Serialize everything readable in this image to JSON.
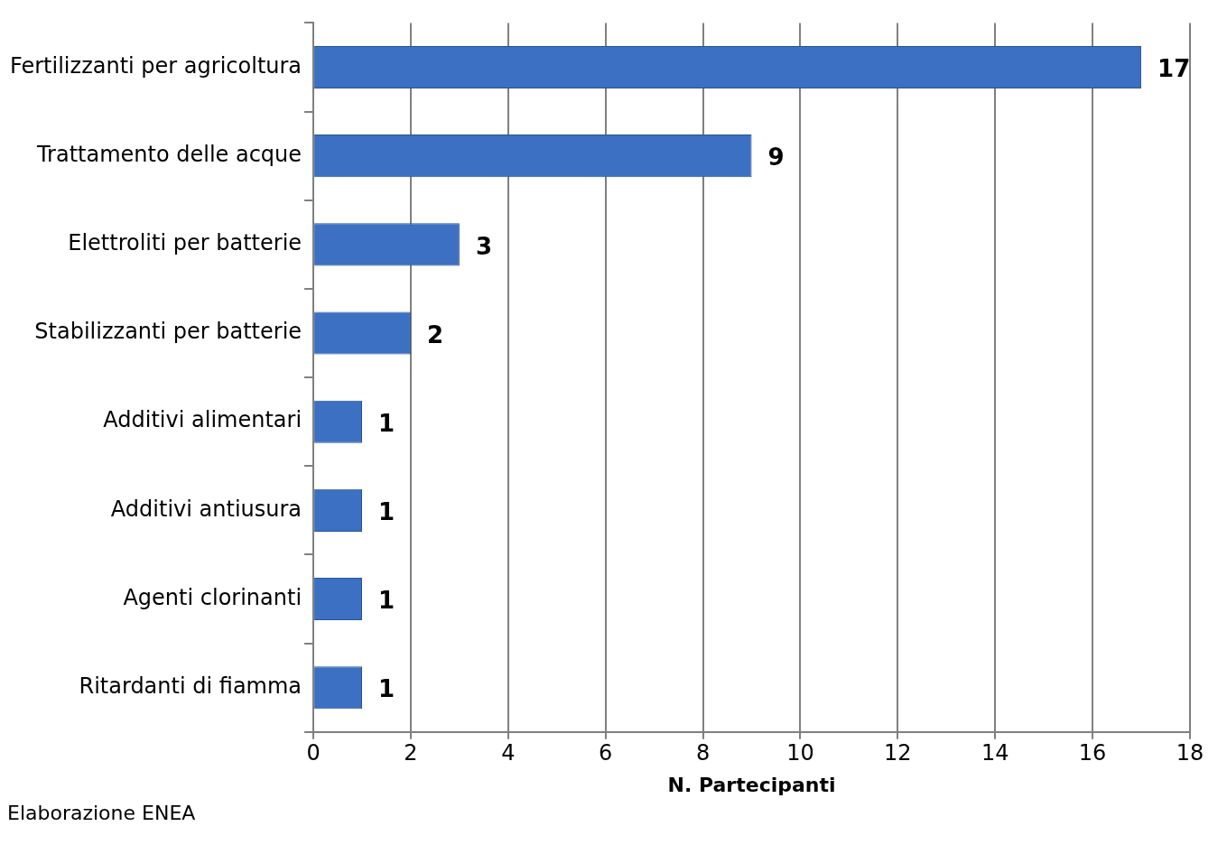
{
  "chart_data": {
    "type": "bar",
    "orientation": "horizontal",
    "xlabel": "N. Partecipanti",
    "categories": [
      "Fertilizzanti per agricoltura",
      "Trattamento delle acque",
      "Elettroliti per batterie",
      "Stabilizzanti per batterie",
      "Additivi alimentari",
      "Additivi antiusura",
      "Agenti clorinanti",
      "Ritardanti di fiamma"
    ],
    "values": [
      17,
      9,
      3,
      2,
      1,
      1,
      1,
      1
    ],
    "color": "#3b70c2",
    "xlim": [
      0,
      18
    ],
    "xticks": [
      0,
      2,
      4,
      6,
      8,
      10,
      12,
      14,
      16,
      18
    ],
    "grid": "x",
    "legend": false,
    "data_labels": true,
    "annotations": [
      "Elaborazione ENEA"
    ]
  }
}
